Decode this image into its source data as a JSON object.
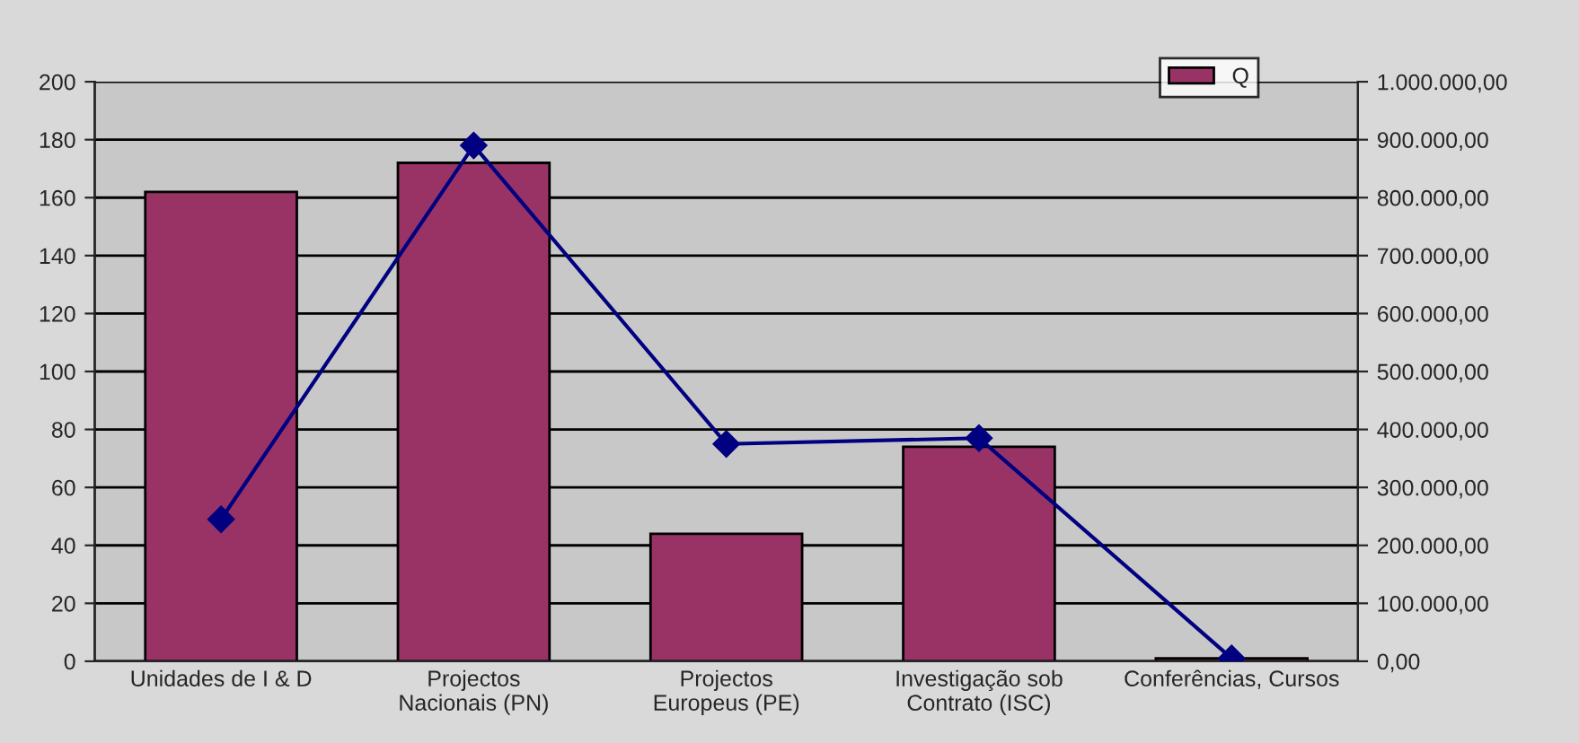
{
  "chart_data": {
    "type": "bar",
    "categories": [
      "Unidades de I & D",
      "Projectos Nacionais (PN)",
      "Projectos Europeus (PE)",
      "Investigação sob Contrato (ISC)",
      "Conferências, Cursos"
    ],
    "series": [
      {
        "name": "Q",
        "color": "#993366",
        "values": [
          162,
          172,
          44,
          74,
          1
        ]
      },
      {
        "type": "line",
        "axis": "y2",
        "color": "#000080",
        "marker": "diamond",
        "values": [
          245000,
          890000,
          375000,
          385000,
          5000
        ]
      }
    ],
    "ylim": [
      0,
      200
    ],
    "yticks": [
      0,
      20,
      40,
      60,
      80,
      100,
      120,
      140,
      160,
      180,
      200
    ],
    "y2lim": [
      0,
      1000000
    ],
    "y2ticks": [
      {
        "value": 0,
        "label": "0,00"
      },
      {
        "value": 100000,
        "label": "100.000,00"
      },
      {
        "value": 200000,
        "label": "200.000,00"
      },
      {
        "value": 300000,
        "label": "300.000,00"
      },
      {
        "value": 400000,
        "label": "400.000,00"
      },
      {
        "value": 500000,
        "label": "500.000,00"
      },
      {
        "value": 600000,
        "label": "600.000,00"
      },
      {
        "value": 700000,
        "label": "700.000,00"
      },
      {
        "value": 800000,
        "label": "800.000,00"
      },
      {
        "value": 900000,
        "label": "900.000,00"
      },
      {
        "value": 1000000,
        "label": "1.000.000,00"
      }
    ],
    "grid": "y",
    "legend": "top right"
  }
}
